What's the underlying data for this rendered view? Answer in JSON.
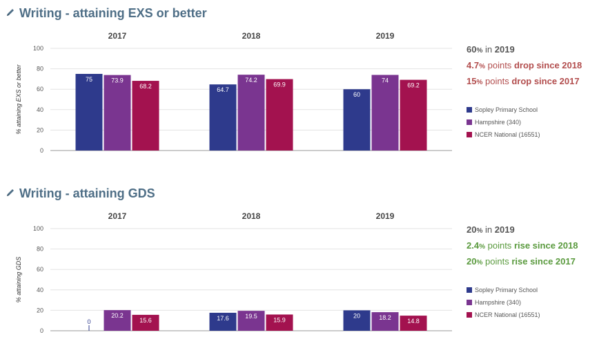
{
  "panels": [
    {
      "title": "Writing - attaining EXS or better",
      "summary": {
        "current_value": "60",
        "current_pct_sign": "%",
        "current_text": "in",
        "current_year": "2019",
        "change1_value": "4.7",
        "change1_text": "points",
        "change1_label": "drop since 2018",
        "change2_value": "15",
        "change2_text": "points",
        "change2_label": "drop since 2017",
        "direction": "drop"
      }
    },
    {
      "title": "Writing - attaining GDS",
      "summary": {
        "current_value": "20",
        "current_pct_sign": "%",
        "current_text": "in",
        "current_year": "2019",
        "change1_value": "2.4",
        "change1_text": "points",
        "change1_label": "rise since 2018",
        "change2_value": "20",
        "change2_text": "points",
        "change2_label": "rise since 2017",
        "direction": "rise"
      }
    }
  ],
  "legend": [
    {
      "name": "Sopley Primary School",
      "color": "#2e3a8c"
    },
    {
      "name": "Hampshire (340)",
      "color": "#7a3590"
    },
    {
      "name": "NCER National (16551)",
      "color": "#a3124f"
    }
  ],
  "colors": {
    "drop": "#b24d4d",
    "rise": "#5a9a3e",
    "title": "#4e6e86"
  },
  "icons": {
    "title_icon": "pencil-icon"
  },
  "chart_data": [
    {
      "type": "bar",
      "title": "Writing - attaining EXS or better",
      "categories": [
        "2017",
        "2018",
        "2019"
      ],
      "ylabel": "% attaining EXS or better",
      "ylim": [
        0,
        100
      ],
      "yticks": [
        0,
        20,
        40,
        60,
        80,
        100
      ],
      "grid": true,
      "legend_position": "right",
      "series": [
        {
          "name": "Sopley Primary School",
          "values": [
            75,
            64.7,
            60
          ]
        },
        {
          "name": "Hampshire (340)",
          "values": [
            73.9,
            74.2,
            74
          ]
        },
        {
          "name": "NCER National (16551)",
          "values": [
            68.2,
            69.9,
            69.2
          ]
        }
      ]
    },
    {
      "type": "bar",
      "title": "Writing - attaining GDS",
      "categories": [
        "2017",
        "2018",
        "2019"
      ],
      "ylabel": "% attaining GDS",
      "ylim": [
        0,
        100
      ],
      "yticks": [
        0,
        20,
        40,
        60,
        80,
        100
      ],
      "grid": true,
      "legend_position": "right",
      "series": [
        {
          "name": "Sopley Primary School",
          "values": [
            0,
            17.6,
            20
          ]
        },
        {
          "name": "Hampshire (340)",
          "values": [
            20.2,
            19.5,
            18.2
          ]
        },
        {
          "name": "NCER National (16551)",
          "values": [
            15.6,
            15.9,
            14.8
          ]
        }
      ]
    }
  ]
}
